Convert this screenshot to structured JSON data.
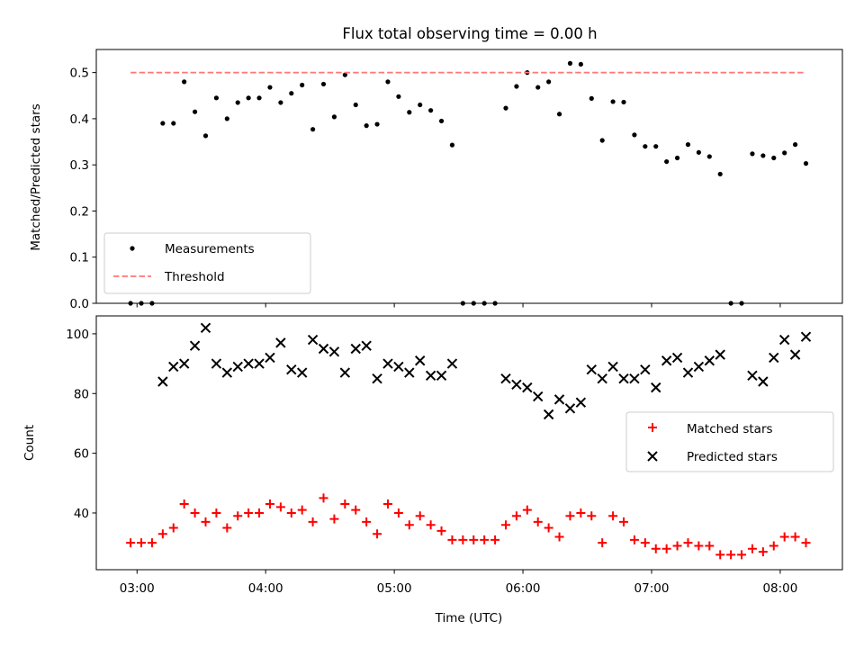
{
  "chart_data": [
    {
      "type": "scatter",
      "title": "Flux total observing time = 0.00 h",
      "xlabel": "",
      "ylabel": "Matched/Predicted stars",
      "ylim": [
        0,
        0.55
      ],
      "yticks": [
        "0.0",
        "0.1",
        "0.2",
        "0.3",
        "0.4",
        "0.5"
      ],
      "ytick_values": [
        0,
        0.1,
        0.2,
        0.3,
        0.4,
        0.5
      ],
      "xlim": [
        "02:41",
        "08:29"
      ],
      "xticks": [
        "03:00",
        "04:00",
        "05:00",
        "06:00",
        "07:00",
        "08:00"
      ],
      "legend_position": "lower-left",
      "series": [
        {
          "name": "Measurements",
          "marker": "dot",
          "color": "#000000",
          "x": [
            "02:57",
            "03:02",
            "03:07",
            "03:12",
            "03:17",
            "03:22",
            "03:27",
            "03:32",
            "03:37",
            "03:42",
            "03:47",
            "03:52",
            "03:57",
            "04:02",
            "04:07",
            "04:12",
            "04:17",
            "04:22",
            "04:27",
            "04:32",
            "04:37",
            "04:42",
            "04:47",
            "04:52",
            "04:57",
            "05:02",
            "05:07",
            "05:12",
            "05:17",
            "05:22",
            "05:27",
            "05:32",
            "05:37",
            "05:42",
            "05:47",
            "05:52",
            "05:57",
            "06:02",
            "06:07",
            "06:12",
            "06:17",
            "06:22",
            "06:27",
            "06:32",
            "06:37",
            "06:42",
            "06:47",
            "06:52",
            "06:57",
            "07:02",
            "07:07",
            "07:12",
            "07:17",
            "07:22",
            "07:27",
            "07:32",
            "07:37",
            "07:42",
            "07:47",
            "07:52",
            "07:57",
            "08:02",
            "08:07",
            "08:12"
          ],
          "y": [
            0.0,
            0.0,
            0.0,
            0.39,
            0.39,
            0.48,
            0.415,
            0.363,
            0.445,
            0.4,
            0.435,
            0.445,
            0.445,
            0.468,
            0.435,
            0.455,
            0.473,
            0.377,
            0.475,
            0.404,
            0.495,
            0.43,
            0.385,
            0.388,
            0.48,
            0.448,
            0.414,
            0.43,
            0.418,
            0.395,
            0.343,
            0.0,
            0.0,
            0.0,
            0.0,
            0.423,
            0.47,
            0.5,
            0.468,
            0.48,
            0.41,
            0.52,
            0.518,
            0.444,
            0.353,
            0.437,
            0.436,
            0.365,
            0.34,
            0.34,
            0.307,
            0.315,
            0.344,
            0.327,
            0.318,
            0.28,
            0.0,
            0.0,
            0.324,
            0.32,
            0.315,
            0.326,
            0.344,
            0.303
          ]
        },
        {
          "name": "Threshold",
          "style": "dashed",
          "color": "#ff7777",
          "x": [
            "02:57",
            "08:12"
          ],
          "y": [
            0.5,
            0.5
          ]
        }
      ]
    },
    {
      "type": "scatter",
      "title": "",
      "xlabel": "Time (UTC)",
      "ylabel": "Count",
      "ylim": [
        21,
        106
      ],
      "yticks": [
        "40",
        "60",
        "80",
        "100"
      ],
      "ytick_values": [
        40,
        60,
        80,
        100
      ],
      "xlim": [
        "02:41",
        "08:29"
      ],
      "xticks": [
        "03:00",
        "04:00",
        "05:00",
        "06:00",
        "07:00",
        "08:00"
      ],
      "legend_position": "center-right",
      "series": [
        {
          "name": "Matched stars",
          "marker": "plus",
          "color": "#ff0000",
          "x": [
            "02:57",
            "03:02",
            "03:07",
            "03:12",
            "03:17",
            "03:22",
            "03:27",
            "03:32",
            "03:37",
            "03:42",
            "03:47",
            "03:52",
            "03:57",
            "04:02",
            "04:07",
            "04:12",
            "04:17",
            "04:22",
            "04:27",
            "04:32",
            "04:37",
            "04:42",
            "04:47",
            "04:52",
            "04:57",
            "05:02",
            "05:07",
            "05:12",
            "05:17",
            "05:22",
            "05:27",
            "05:32",
            "05:37",
            "05:42",
            "05:47",
            "05:52",
            "05:57",
            "06:02",
            "06:07",
            "06:12",
            "06:17",
            "06:22",
            "06:27",
            "06:32",
            "06:37",
            "06:42",
            "06:47",
            "06:52",
            "06:57",
            "07:02",
            "07:07",
            "07:12",
            "07:17",
            "07:22",
            "07:27",
            "07:32",
            "07:37",
            "07:42",
            "07:47",
            "07:52",
            "07:57",
            "08:02",
            "08:07",
            "08:12"
          ],
          "y": [
            30,
            30,
            30,
            33,
            35,
            43,
            40,
            37,
            40,
            35,
            39,
            40,
            40,
            43,
            42,
            40,
            41,
            37,
            45,
            38,
            43,
            41,
            37,
            33,
            43,
            40,
            36,
            39,
            36,
            34,
            31,
            31,
            31,
            31,
            31,
            36,
            39,
            41,
            37,
            35,
            32,
            39,
            40,
            39,
            30,
            39,
            37,
            31,
            30,
            28,
            28,
            29,
            30,
            29,
            29,
            26,
            26,
            26,
            28,
            27,
            29,
            32,
            32,
            30
          ]
        },
        {
          "name": "Predicted stars",
          "marker": "x",
          "color": "#000000",
          "x": [
            "03:12",
            "03:17",
            "03:22",
            "03:27",
            "03:32",
            "03:37",
            "03:42",
            "03:47",
            "03:52",
            "03:57",
            "04:02",
            "04:07",
            "04:12",
            "04:17",
            "04:22",
            "04:27",
            "04:32",
            "04:37",
            "04:42",
            "04:47",
            "04:52",
            "04:57",
            "05:02",
            "05:07",
            "05:12",
            "05:17",
            "05:22",
            "05:27",
            "05:52",
            "05:57",
            "06:02",
            "06:07",
            "06:12",
            "06:17",
            "06:22",
            "06:27",
            "06:32",
            "06:37",
            "06:42",
            "06:47",
            "06:52",
            "06:57",
            "07:02",
            "07:07",
            "07:12",
            "07:17",
            "07:22",
            "07:27",
            "07:32",
            "07:47",
            "07:52",
            "07:57",
            "08:02",
            "08:07",
            "08:12"
          ],
          "y": [
            84,
            89,
            90,
            96,
            102,
            90,
            87,
            89,
            90,
            90,
            92,
            97,
            88,
            87,
            98,
            95,
            94,
            87,
            95,
            96,
            85,
            90,
            89,
            87,
            91,
            86,
            86,
            90,
            85,
            83,
            82,
            79,
            73,
            78,
            75,
            77,
            88,
            85,
            89,
            85,
            85,
            88,
            82,
            91,
            92,
            87,
            89,
            91,
            93,
            86,
            84,
            92,
            98,
            93,
            99
          ]
        }
      ]
    }
  ]
}
